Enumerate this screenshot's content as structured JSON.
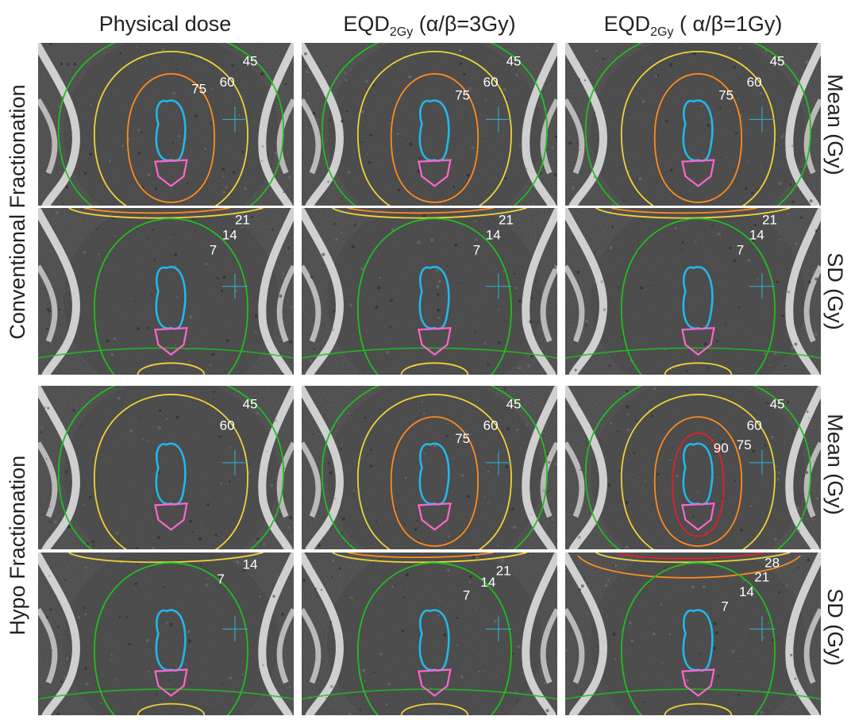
{
  "columns": [
    {
      "id": "physical",
      "label": "Physical dose"
    },
    {
      "id": "eqd3",
      "prefix": "EQD",
      "sub": "2Gy",
      "suffix": " (α/β=3Gy)"
    },
    {
      "id": "eqd1",
      "prefix": "EQD",
      "sub": "2Gy",
      "suffix": " ( α/β=1Gy)"
    }
  ],
  "row_groups": [
    {
      "id": "conventional",
      "label": "Conventional Fractionation"
    },
    {
      "id": "hypo",
      "label": "Hypo Fractionation"
    }
  ],
  "row_stats": [
    {
      "id": "mean",
      "label": "Mean (Gy)"
    },
    {
      "id": "sd",
      "label": "SD (Gy)"
    },
    {
      "id": "mean",
      "label": "Mean (Gy)"
    },
    {
      "id": "sd",
      "label": "SD (Gy)"
    }
  ],
  "colors": {
    "iso_45": "#1fbf1f",
    "iso_60": "#f0d23a",
    "iso_75": "#ff8a1e",
    "iso_90": "#e0202a",
    "target_organ": "#22b8e8",
    "second_organ": "#ff66cc",
    "bone": "#e6e6e6",
    "marker": "#2fb6d6"
  },
  "panels": [
    {
      "row": 0,
      "col": 0,
      "labels": [
        "45",
        "60",
        "75"
      ]
    },
    {
      "row": 0,
      "col": 1,
      "labels": [
        "45",
        "60",
        "75"
      ]
    },
    {
      "row": 0,
      "col": 2,
      "labels": [
        "45",
        "60",
        "75"
      ]
    },
    {
      "row": 1,
      "col": 0,
      "labels": [
        "21",
        "14",
        "7"
      ]
    },
    {
      "row": 1,
      "col": 1,
      "labels": [
        "21",
        "14",
        "7"
      ]
    },
    {
      "row": 1,
      "col": 2,
      "labels": [
        "21",
        "14",
        "7"
      ]
    },
    {
      "row": 2,
      "col": 0,
      "labels": [
        "45",
        "60"
      ]
    },
    {
      "row": 2,
      "col": 1,
      "labels": [
        "45",
        "60",
        "75"
      ]
    },
    {
      "row": 2,
      "col": 2,
      "labels": [
        "45",
        "60",
        "75",
        "90"
      ]
    },
    {
      "row": 3,
      "col": 0,
      "labels": [
        "14",
        "7"
      ]
    },
    {
      "row": 3,
      "col": 1,
      "labels": [
        "21",
        "14",
        "7"
      ]
    },
    {
      "row": 3,
      "col": 2,
      "labels": [
        "28",
        "21",
        "14",
        "7"
      ]
    }
  ]
}
